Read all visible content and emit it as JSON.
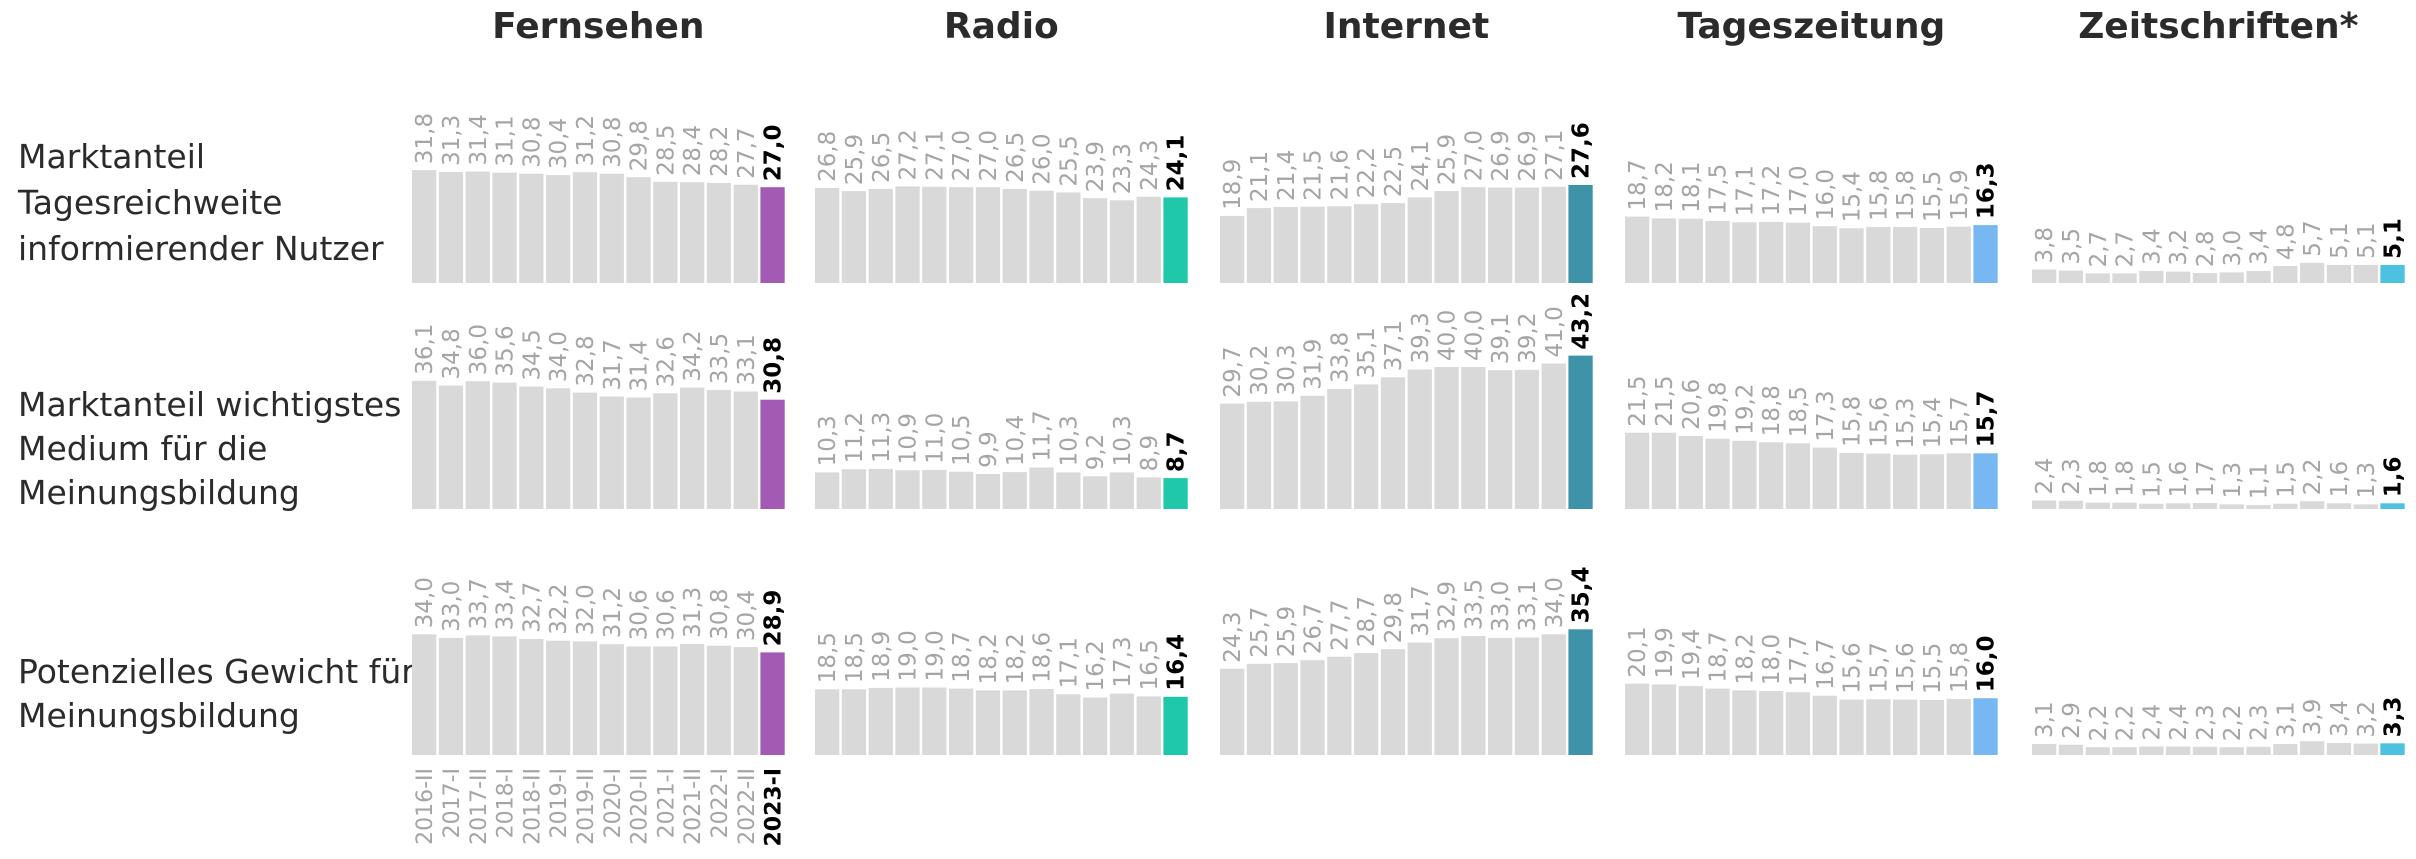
{
  "chart_data": {
    "type": "bar",
    "periods": [
      "2016-II",
      "2017-I",
      "2017-II",
      "2018-I",
      "2018-II",
      "2019-I",
      "2019-II",
      "2020-I",
      "2020-II",
      "2021-I",
      "2021-II",
      "2022-I",
      "2022-II",
      "2023-I"
    ],
    "media": [
      {
        "name": "Fernsehen",
        "color": "#a25ab5"
      },
      {
        "name": "Radio",
        "color": "#1ec8a8"
      },
      {
        "name": "Internet",
        "color": "#3f93a8"
      },
      {
        "name": "Tageszeitung",
        "color": "#78b8f2"
      },
      {
        "name": "Zeitschriften*",
        "color": "#4dc1df"
      }
    ],
    "rows": [
      {
        "label_lines": [
          "Marktanteil",
          "Tagesreichweite",
          "informierender Nutzer"
        ],
        "series": [
          {
            "values": [
              31.8,
              31.3,
              31.4,
              31.1,
              30.8,
              30.4,
              31.2,
              30.8,
              29.8,
              28.5,
              28.4,
              28.2,
              27.7,
              27.0
            ]
          },
          {
            "values": [
              26.8,
              25.9,
              26.5,
              27.2,
              27.1,
              27.0,
              27.0,
              26.5,
              26.0,
              25.5,
              23.9,
              23.3,
              24.3,
              24.1
            ]
          },
          {
            "values": [
              18.9,
              21.1,
              21.4,
              21.5,
              21.6,
              22.2,
              22.5,
              24.1,
              25.9,
              27.0,
              26.9,
              26.9,
              27.1,
              27.6
            ]
          },
          {
            "values": [
              18.7,
              18.2,
              18.1,
              17.5,
              17.1,
              17.2,
              17.0,
              16.0,
              15.4,
              15.8,
              15.8,
              15.5,
              15.9,
              16.3
            ]
          },
          {
            "values": [
              3.8,
              3.5,
              2.7,
              2.7,
              3.4,
              3.2,
              2.8,
              3.0,
              3.4,
              4.8,
              5.7,
              5.1,
              5.1,
              5.1
            ]
          }
        ]
      },
      {
        "label_lines": [
          "Marktanteil wichtigstes",
          "Medium für die",
          "Meinungsbildung"
        ],
        "series": [
          {
            "values": [
              36.1,
              34.8,
              36.0,
              35.6,
              34.5,
              34.0,
              32.8,
              31.7,
              31.4,
              32.6,
              34.2,
              33.5,
              33.1,
              30.8
            ]
          },
          {
            "values": [
              10.3,
              11.2,
              11.3,
              10.9,
              11.0,
              10.5,
              9.9,
              10.4,
              11.7,
              10.3,
              9.2,
              10.3,
              8.9,
              8.7
            ]
          },
          {
            "values": [
              29.7,
              30.2,
              30.3,
              31.9,
              33.8,
              35.1,
              37.1,
              39.3,
              40.0,
              40.0,
              39.1,
              39.2,
              41.0,
              43.2
            ]
          },
          {
            "values": [
              21.5,
              21.5,
              20.6,
              19.8,
              19.2,
              18.8,
              18.5,
              17.3,
              15.8,
              15.6,
              15.3,
              15.4,
              15.7,
              15.7
            ]
          },
          {
            "values": [
              2.4,
              2.3,
              1.8,
              1.8,
              1.5,
              1.6,
              1.7,
              1.3,
              1.1,
              1.5,
              2.2,
              1.6,
              1.3,
              1.6
            ]
          }
        ]
      },
      {
        "label_lines": [
          "Potenzielles Gewicht für",
          "Meinungsbildung"
        ],
        "series": [
          {
            "values": [
              34.0,
              33.0,
              33.7,
              33.4,
              32.7,
              32.2,
              32.0,
              31.2,
              30.6,
              30.6,
              31.3,
              30.8,
              30.4,
              28.9
            ]
          },
          {
            "values": [
              18.5,
              18.5,
              18.9,
              19.0,
              19.0,
              18.7,
              18.2,
              18.2,
              18.6,
              17.1,
              16.2,
              17.3,
              16.5,
              16.4
            ]
          },
          {
            "values": [
              24.3,
              25.7,
              25.9,
              26.7,
              27.7,
              28.7,
              29.8,
              31.7,
              32.9,
              33.5,
              33.0,
              33.1,
              34.0,
              35.4
            ]
          },
          {
            "values": [
              20.1,
              19.9,
              19.4,
              18.7,
              18.2,
              18.0,
              17.7,
              16.7,
              15.6,
              15.7,
              15.6,
              15.5,
              15.8,
              16.0
            ]
          },
          {
            "values": [
              3.1,
              2.9,
              2.2,
              2.2,
              2.4,
              2.4,
              2.3,
              2.2,
              2.3,
              3.1,
              3.9,
              3.4,
              3.2,
              3.3
            ]
          }
        ]
      }
    ]
  }
}
